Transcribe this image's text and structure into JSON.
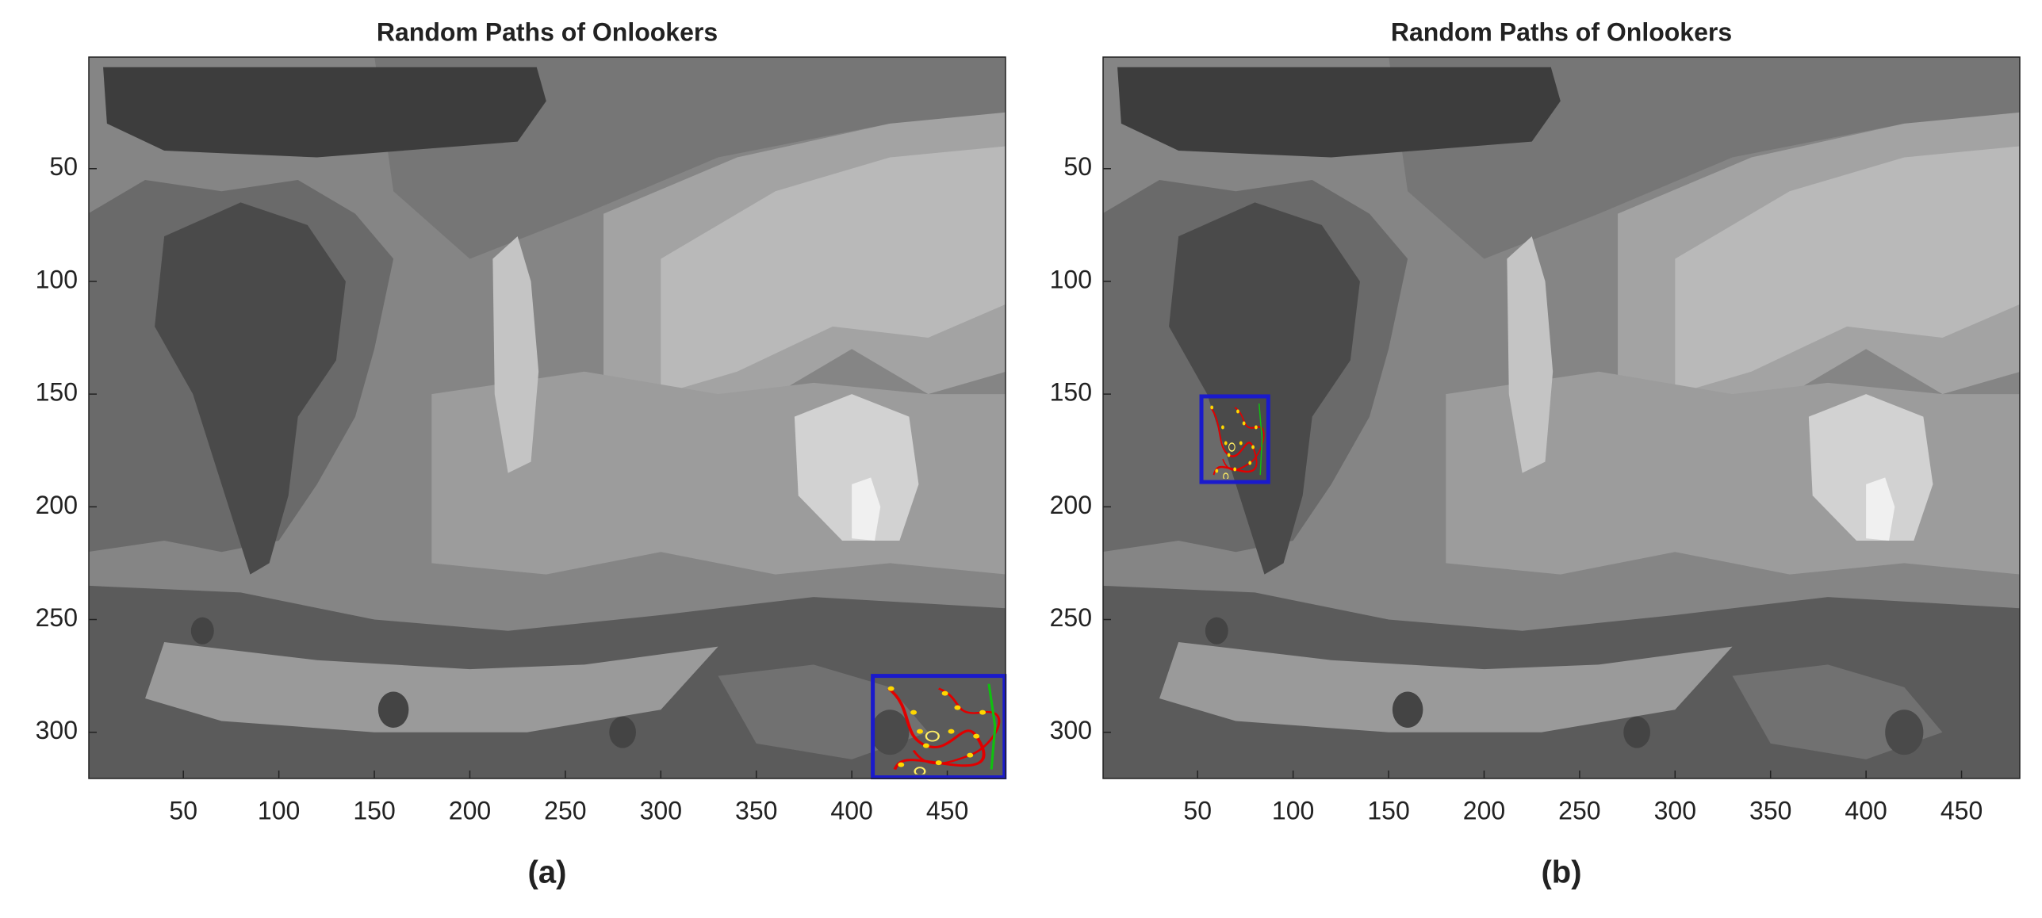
{
  "chart_data": [
    {
      "type": "image",
      "title": "Random Paths of Onlookers",
      "caption": "(a)",
      "xlim": [
        0.5,
        480.5
      ],
      "ylim": [
        0.5,
        320.5
      ],
      "y_reversed": true,
      "xticks": [
        50,
        100,
        150,
        200,
        250,
        300,
        350,
        400,
        450
      ],
      "yticks": [
        50,
        100,
        150,
        200,
        250,
        300
      ],
      "box": {
        "x": [
          411,
          480
        ],
        "y": [
          275,
          320
        ],
        "color": "#1a1acc"
      }
    },
    {
      "type": "image",
      "title": "Random Paths of Onlookers",
      "caption": "(b)",
      "xlim": [
        0.5,
        480.5
      ],
      "ylim": [
        0.5,
        320.5
      ],
      "y_reversed": true,
      "xticks": [
        50,
        100,
        150,
        200,
        250,
        300,
        350,
        400,
        450
      ],
      "yticks": [
        50,
        100,
        150,
        200,
        250,
        300
      ],
      "box": {
        "x": [
          52,
          87
        ],
        "y": [
          151,
          189
        ],
        "color": "#1a1acc"
      }
    }
  ]
}
